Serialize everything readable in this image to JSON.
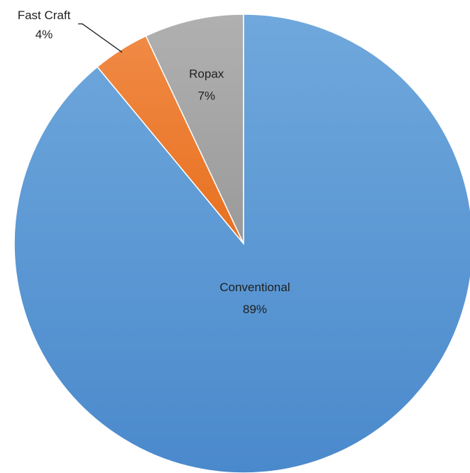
{
  "chart_data": {
    "type": "pie",
    "title": "",
    "start_angle_deg": 0,
    "direction": "clockwise",
    "legend": "none",
    "slices": [
      {
        "label": "Conventional",
        "value": 89,
        "value_label": "89%",
        "color": "#5b9bd5",
        "label_position": "inside"
      },
      {
        "label": "Fast Craft",
        "value": 4,
        "value_label": "4%",
        "color": "#ed7d31",
        "label_position": "outside-leader"
      },
      {
        "label": "Ropax",
        "value": 7,
        "value_label": "7%",
        "color": "#a5a5a5",
        "label_position": "inside"
      }
    ]
  }
}
